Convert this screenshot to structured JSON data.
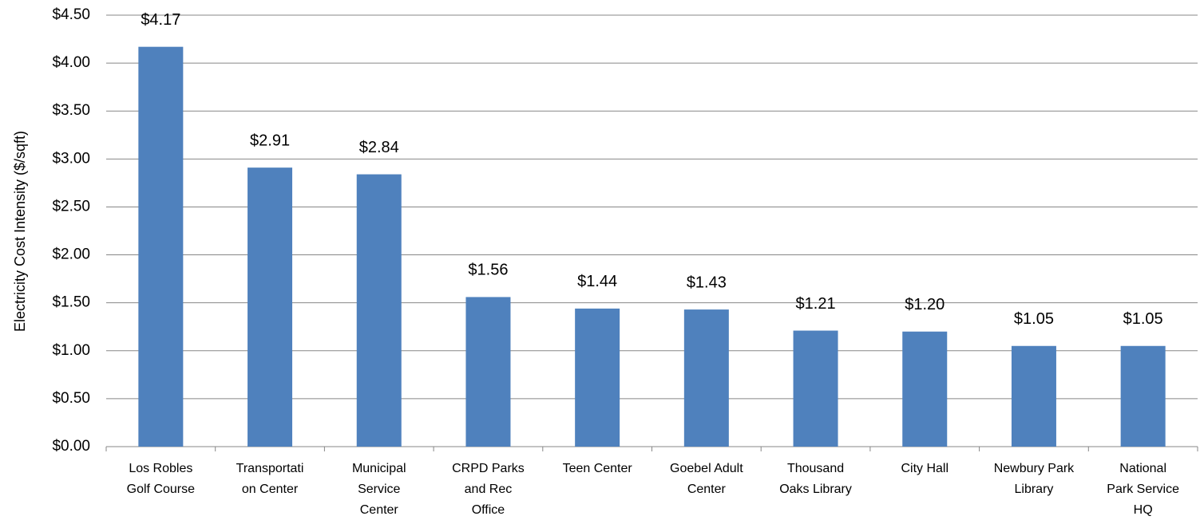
{
  "chart_data": {
    "type": "bar",
    "y_axis_label": "Electricity Cost Intensity  ($/sqft)",
    "categories": [
      [
        "Los Robles",
        "Golf Course"
      ],
      [
        "Transportati",
        "on Center"
      ],
      [
        "Municipal",
        "Service",
        "Center"
      ],
      [
        "CRPD Parks",
        "and Rec",
        "Office"
      ],
      [
        "Teen Center"
      ],
      [
        "Goebel Adult",
        "Center"
      ],
      [
        "Thousand",
        "Oaks Library"
      ],
      [
        "City Hall"
      ],
      [
        "Newbury Park",
        "Library"
      ],
      [
        "National",
        "Park Service",
        "HQ"
      ]
    ],
    "values": [
      4.17,
      2.91,
      2.84,
      1.56,
      1.44,
      1.43,
      1.21,
      1.2,
      1.05,
      1.05
    ],
    "value_labels": [
      "$4.17",
      "$2.91",
      "$2.84",
      "$1.56",
      "$1.44",
      "$1.43",
      "$1.21",
      "$1.20",
      "$1.05",
      "$1.05"
    ],
    "color": "#4f81bd",
    "ylim": [
      0,
      4.5
    ],
    "yticks": [
      {
        "value": 0,
        "label": "$0.00"
      },
      {
        "value": 0.5,
        "label": "$0.50"
      },
      {
        "value": 1,
        "label": "$1.00"
      },
      {
        "value": 1.5,
        "label": "$1.50"
      },
      {
        "value": 2,
        "label": "$2.00"
      },
      {
        "value": 2.5,
        "label": "$2.50"
      },
      {
        "value": 3,
        "label": "$3.00"
      },
      {
        "value": 3.5,
        "label": "$3.50"
      },
      {
        "value": 4,
        "label": "$4.00"
      },
      {
        "value": 4.5,
        "label": "$4.50"
      }
    ],
    "grid": true
  }
}
